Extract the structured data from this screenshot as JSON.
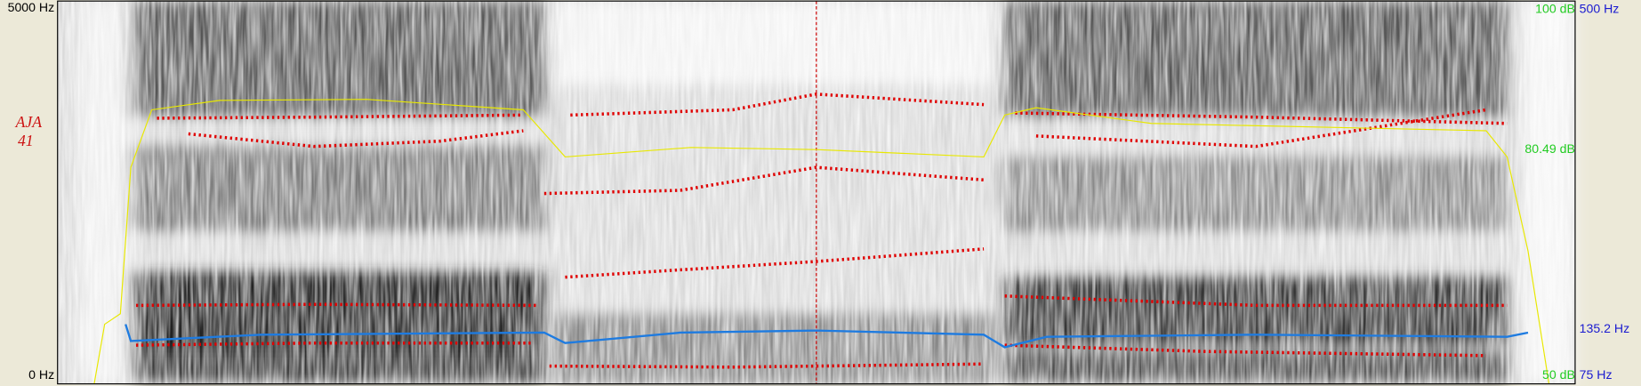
{
  "axis": {
    "freq_top": "5000 Hz",
    "freq_bottom": "0 Hz"
  },
  "right_labels": {
    "intensity_top": "100 dB",
    "pitch_top": "500 Hz",
    "intensity_mid": "80.49 dB",
    "pitch_mid": "135.2 Hz",
    "intensity_bottom": "50 dB",
    "pitch_bottom": "75 Hz"
  },
  "annotation": {
    "line1": "AJA",
    "line2": "41"
  }
}
